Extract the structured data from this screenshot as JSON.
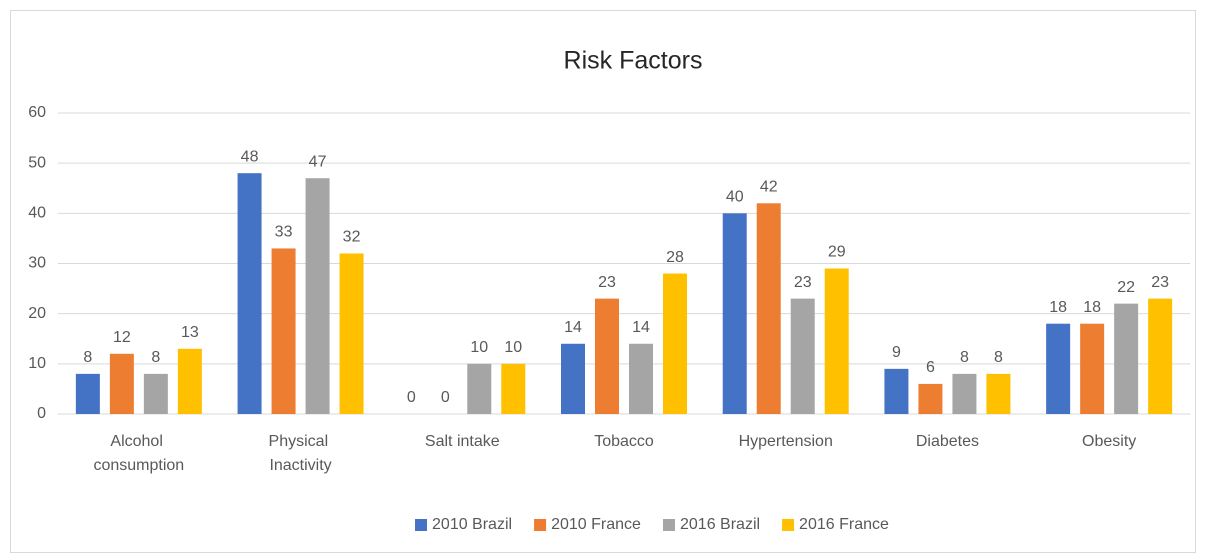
{
  "chart_data": {
    "type": "bar",
    "title": "Risk Factors",
    "categories": [
      "Alcohol consumption",
      "Physical Inactivity",
      "Salt intake",
      "Tobacco",
      "Hypertension",
      "Diabetes",
      "Obesity"
    ],
    "series": [
      {
        "name": "2010 Brazil",
        "color": "#4472c4",
        "values": [
          8,
          48,
          0,
          14,
          40,
          9,
          18
        ]
      },
      {
        "name": "2010 France",
        "color": "#ed7d31",
        "values": [
          12,
          33,
          0,
          23,
          42,
          6,
          18
        ]
      },
      {
        "name": "2016 Brazil",
        "color": "#a5a5a5",
        "values": [
          8,
          47,
          10,
          14,
          23,
          8,
          22
        ]
      },
      {
        "name": "2016 France",
        "color": "#ffc000",
        "values": [
          13,
          32,
          10,
          28,
          29,
          8,
          23
        ]
      }
    ],
    "ylim": [
      0,
      60
    ],
    "yticks": [
      0,
      10,
      20,
      30,
      40,
      50,
      60
    ],
    "grid": true,
    "legend": "bottom"
  }
}
